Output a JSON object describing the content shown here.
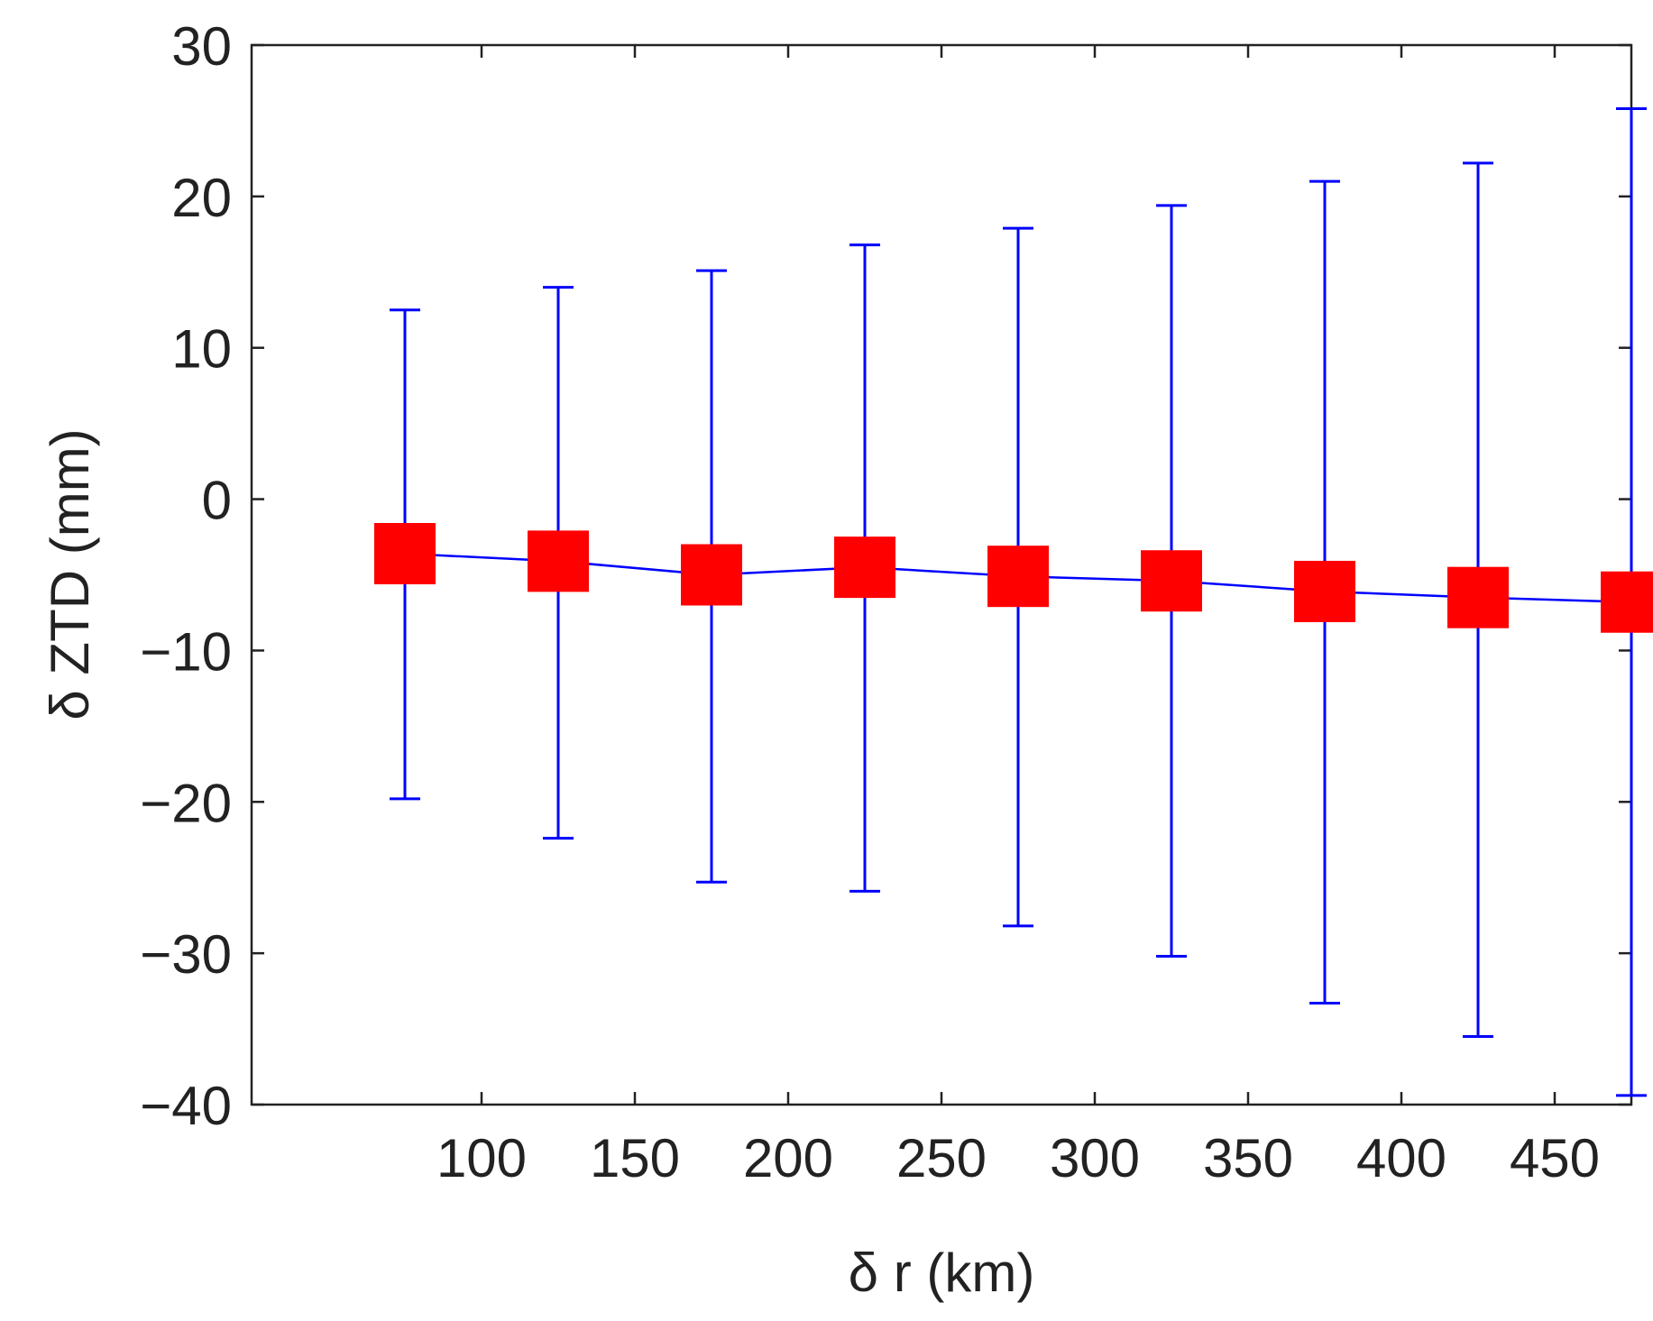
{
  "chart_data": {
    "type": "line",
    "title": "",
    "xlabel": "δ r (km)",
    "ylabel": "δ ZTD (mm)",
    "xlim": [
      25,
      475
    ],
    "ylim": [
      -40,
      30
    ],
    "xticks": [
      100,
      150,
      200,
      250,
      300,
      350,
      400,
      450
    ],
    "yticks": [
      30,
      20,
      10,
      0,
      -10,
      -20,
      -30,
      -40
    ],
    "ytick_labels": [
      "30",
      "20",
      "10",
      "0",
      "−10",
      "−20",
      "−30",
      "−40"
    ],
    "grid": false,
    "legend": "none",
    "series": [
      {
        "marker": "square",
        "x": [
          75,
          125,
          175,
          225,
          275,
          325,
          375,
          425,
          475
        ],
        "y": [
          -3.6,
          -4.1,
          -5.0,
          -4.5,
          -5.1,
          -5.4,
          -6.1,
          -6.5,
          -6.8
        ],
        "err_upper": [
          12.5,
          14.0,
          15.1,
          16.8,
          17.9,
          19.4,
          21.0,
          22.2,
          25.8
        ],
        "err_lower": [
          -19.8,
          -22.4,
          -25.3,
          -25.9,
          -28.2,
          -30.2,
          -33.3,
          -35.5,
          -39.4
        ]
      }
    ],
    "colors": {
      "line": "#0000ff",
      "errorbar": "#0000ff",
      "marker": "#ff0000",
      "axis": "#222222"
    }
  }
}
